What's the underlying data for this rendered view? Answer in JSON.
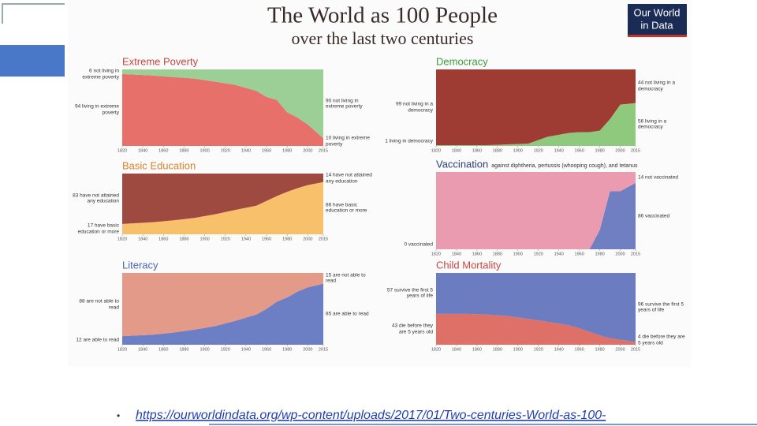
{
  "infographic": {
    "title": "The World as 100 People",
    "subtitle": "over the last two centuries",
    "logo": [
      "Our World",
      "in Data"
    ]
  },
  "slide": {
    "bullet": "•",
    "url": "https://ourworldindata.org/wp-content/uploads/2017/01/Two-centuries-World-as-100-"
  },
  "chart_data": [
    {
      "type": "area",
      "title": "Extreme Poverty",
      "title_color": "#c9453f",
      "x": [
        1820,
        1850,
        1870,
        1890,
        1910,
        1929,
        1950,
        1960,
        1970,
        1980,
        1990,
        2000,
        2015
      ],
      "xlim": [
        1820,
        2015
      ],
      "xticks": [
        1820,
        1840,
        1860,
        1880,
        1900,
        1920,
        1940,
        1960,
        1980,
        2000,
        2015
      ],
      "ylim": [
        0,
        100
      ],
      "series": [
        {
          "name": "living in extreme poverty",
          "color": "#e8706b",
          "values": [
            94,
            92,
            90,
            88,
            84,
            80,
            72,
            64,
            60,
            44,
            37,
            28,
            10
          ]
        },
        {
          "name": "not living in extreme poverty",
          "color": "#9ccf96",
          "values": [
            6,
            8,
            10,
            12,
            16,
            20,
            28,
            36,
            40,
            56,
            63,
            72,
            90
          ]
        }
      ],
      "start_labels": [
        "94 living in extreme poverty",
        "6 not living in extreme poverty"
      ],
      "end_labels": [
        "10 living in extreme poverty",
        "90 not living in extreme poverty"
      ]
    },
    {
      "type": "area",
      "title": "Democracy",
      "title_color": "#3c9a3c",
      "x": [
        1820,
        1850,
        1870,
        1890,
        1910,
        1929,
        1950,
        1960,
        1970,
        1980,
        1990,
        2000,
        2015
      ],
      "xlim": [
        1820,
        2015
      ],
      "xticks": [
        1820,
        1840,
        1860,
        1880,
        1900,
        1920,
        1940,
        1960,
        1980,
        2000,
        2015
      ],
      "ylim": [
        0,
        100
      ],
      "series": [
        {
          "name": "living in a democracy",
          "color": "#8fc97d",
          "values": [
            1,
            1,
            1,
            2,
            3,
            12,
            17,
            18,
            18,
            20,
            35,
            54,
            56
          ]
        },
        {
          "name": "not living in a democracy",
          "color": "#9e3b33",
          "values": [
            99,
            99,
            99,
            98,
            97,
            88,
            83,
            82,
            82,
            80,
            65,
            46,
            44
          ]
        }
      ],
      "start_labels": [
        "1 living in democracy",
        "99 not living in a democracy"
      ],
      "end_labels": [
        "56 living in a democracy",
        "44 not living in a democracy"
      ]
    },
    {
      "type": "area",
      "title": "Basic Education",
      "title_color": "#d9822b",
      "x": [
        1820,
        1850,
        1870,
        1890,
        1910,
        1929,
        1950,
        1960,
        1970,
        1980,
        1990,
        2000,
        2015
      ],
      "xlim": [
        1820,
        2015
      ],
      "xticks": [
        1820,
        1840,
        1860,
        1880,
        1900,
        1920,
        1940,
        1960,
        1980,
        2000,
        2015
      ],
      "ylim": [
        0,
        100
      ],
      "series": [
        {
          "name": "have basic education or more",
          "color": "#f8c06b",
          "values": [
            17,
            20,
            23,
            27,
            33,
            40,
            47,
            55,
            63,
            70,
            76,
            81,
            86
          ]
        },
        {
          "name": "have not attained any education",
          "color": "#9e4a40",
          "values": [
            83,
            80,
            77,
            73,
            67,
            60,
            53,
            45,
            37,
            30,
            24,
            19,
            14
          ]
        }
      ],
      "start_labels": [
        "17 have basic education or more",
        "83 have not attained any education"
      ],
      "end_labels": [
        "86 have basic education or more",
        "14 have not attained any education"
      ]
    },
    {
      "type": "area",
      "title": "Vaccination",
      "subtitle": "against diphtheria, pertussis (whooping cough), and tetanus",
      "title_color": "#2d3e7a",
      "x": [
        1820,
        1850,
        1870,
        1890,
        1910,
        1929,
        1950,
        1960,
        1970,
        1980,
        1990,
        2000,
        2015
      ],
      "xlim": [
        1820,
        2015
      ],
      "xticks": [
        1820,
        1840,
        1860,
        1880,
        1900,
        1920,
        1940,
        1960,
        1980,
        2000,
        2015
      ],
      "ylim": [
        0,
        100
      ],
      "series": [
        {
          "name": "vaccinated",
          "color": "#6f7fc2",
          "values": [
            0,
            0,
            0,
            0,
            0,
            0,
            0,
            0,
            0,
            25,
            75,
            75,
            86
          ]
        },
        {
          "name": "not vaccinated",
          "color": "#eb9bb0",
          "values": [
            100,
            100,
            100,
            100,
            100,
            100,
            100,
            100,
            100,
            75,
            25,
            25,
            14
          ]
        }
      ],
      "start_labels": [
        "0 vaccinated",
        null
      ],
      "end_labels": [
        "86 vaccinated",
        "14 not vaccinated"
      ]
    },
    {
      "type": "area",
      "title": "Literacy",
      "title_color": "#4a64b8",
      "x": [
        1820,
        1850,
        1870,
        1890,
        1910,
        1929,
        1950,
        1960,
        1970,
        1980,
        1990,
        2000,
        2015
      ],
      "xlim": [
        1820,
        2015
      ],
      "xticks": [
        1820,
        1840,
        1860,
        1880,
        1900,
        1920,
        1940,
        1960,
        1980,
        2000,
        2015
      ],
      "ylim": [
        0,
        100
      ],
      "series": [
        {
          "name": "are able to read",
          "color": "#6c7ec4",
          "values": [
            12,
            14,
            17,
            21,
            26,
            33,
            42,
            50,
            60,
            66,
            74,
            80,
            85
          ]
        },
        {
          "name": "are not able to read",
          "color": "#e39a88",
          "values": [
            88,
            86,
            83,
            79,
            74,
            67,
            58,
            50,
            40,
            34,
            26,
            20,
            15
          ]
        }
      ],
      "start_labels": [
        "12 are able to read",
        "88 are not able to read"
      ],
      "end_labels": [
        "85 are able to read",
        "15 are not able to read"
      ]
    },
    {
      "type": "area",
      "title": "Child Mortality",
      "title_color": "#c9453f",
      "x": [
        1820,
        1850,
        1870,
        1890,
        1910,
        1929,
        1950,
        1960,
        1970,
        1980,
        1990,
        2000,
        2015
      ],
      "xlim": [
        1820,
        2015
      ],
      "xticks": [
        1820,
        1840,
        1860,
        1880,
        1900,
        1920,
        1940,
        1960,
        1980,
        2000,
        2015
      ],
      "ylim": [
        0,
        100
      ],
      "series": [
        {
          "name": "die before they are 5 years old",
          "color": "#de7068",
          "values": [
            43,
            43,
            42,
            40,
            36,
            32,
            27,
            23,
            18,
            13,
            9,
            7,
            4
          ]
        },
        {
          "name": "survive the first 5 years of life",
          "color": "#6b7cc1",
          "values": [
            57,
            57,
            58,
            60,
            64,
            68,
            73,
            77,
            82,
            87,
            91,
            93,
            96
          ]
        }
      ],
      "start_labels": [
        "43 die before they are 5 years old",
        "57 survive the first 5 years of life"
      ],
      "end_labels": [
        "4 die before they are 5 years old",
        "96 survive the first 5 years of life"
      ]
    }
  ]
}
